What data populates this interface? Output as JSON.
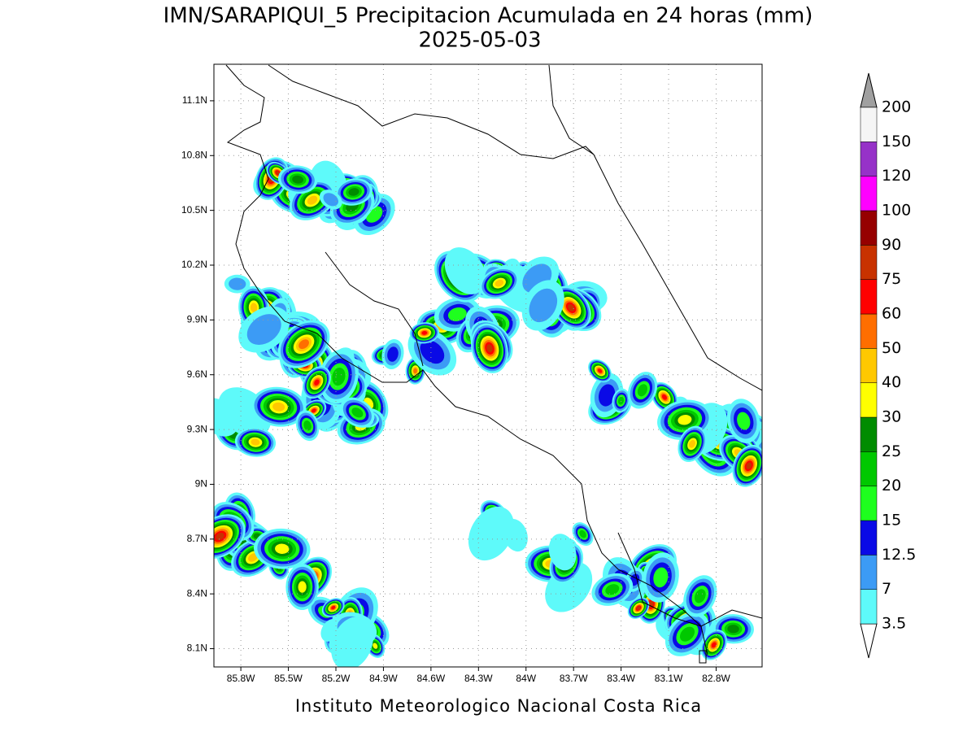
{
  "chart_data": {
    "type": "map",
    "title": "IMN/SARAPIQUI_5 Precipitacion Acumulada en 24 horas (mm)",
    "subtitle": "2025-05-03",
    "footer": "Instituto Meteorologico Nacional Costa Rica",
    "xlim": [
      -85.97,
      -82.51
    ],
    "ylim": [
      8.0,
      11.3
    ],
    "xticks": [
      {
        "value": -85.8,
        "label": "85.8W"
      },
      {
        "value": -85.5,
        "label": "85.5W"
      },
      {
        "value": -85.2,
        "label": "85.2W"
      },
      {
        "value": -84.9,
        "label": "84.9W"
      },
      {
        "value": -84.6,
        "label": "84.6W"
      },
      {
        "value": -84.3,
        "label": "84.3W"
      },
      {
        "value": -84,
        "label": "84W"
      },
      {
        "value": -83.7,
        "label": "83.7W"
      },
      {
        "value": -83.4,
        "label": "83.4W"
      },
      {
        "value": -83.1,
        "label": "83.1W"
      },
      {
        "value": -82.8,
        "label": "82.8W"
      }
    ],
    "yticks": [
      {
        "value": 8.1,
        "label": "8.1N"
      },
      {
        "value": 8.4,
        "label": "8.4N"
      },
      {
        "value": 8.7,
        "label": "8.7N"
      },
      {
        "value": 9,
        "label": "9N"
      },
      {
        "value": 9.3,
        "label": "9.3N"
      },
      {
        "value": 9.6,
        "label": "9.6N"
      },
      {
        "value": 9.9,
        "label": "9.9N"
      },
      {
        "value": 10.2,
        "label": "10.2N"
      },
      {
        "value": 10.5,
        "label": "10.5N"
      },
      {
        "value": 10.8,
        "label": "10.8N"
      },
      {
        "value": 11.1,
        "label": "11.1N"
      }
    ],
    "grid": true,
    "colorbar": {
      "levels": [
        3.5,
        7,
        {
          "value": 12.5,
          "label": "12.5"
        },
        15,
        20,
        25,
        30,
        40,
        50,
        60,
        75,
        90,
        100,
        120,
        150,
        200
      ],
      "colors": [
        "#5efafa",
        "#3c9bf5",
        "#0a0ae6",
        "#1eff1e",
        "#00c800",
        "#008c00",
        "#ffff00",
        "#ffc800",
        "#ff6e00",
        "#ff0000",
        "#c83200",
        "#960000",
        "#ff00ff",
        "#9632c8",
        "#f5f5f5"
      ],
      "under_color": "#ffffff",
      "over_color": "#a0a0a0"
    }
  }
}
